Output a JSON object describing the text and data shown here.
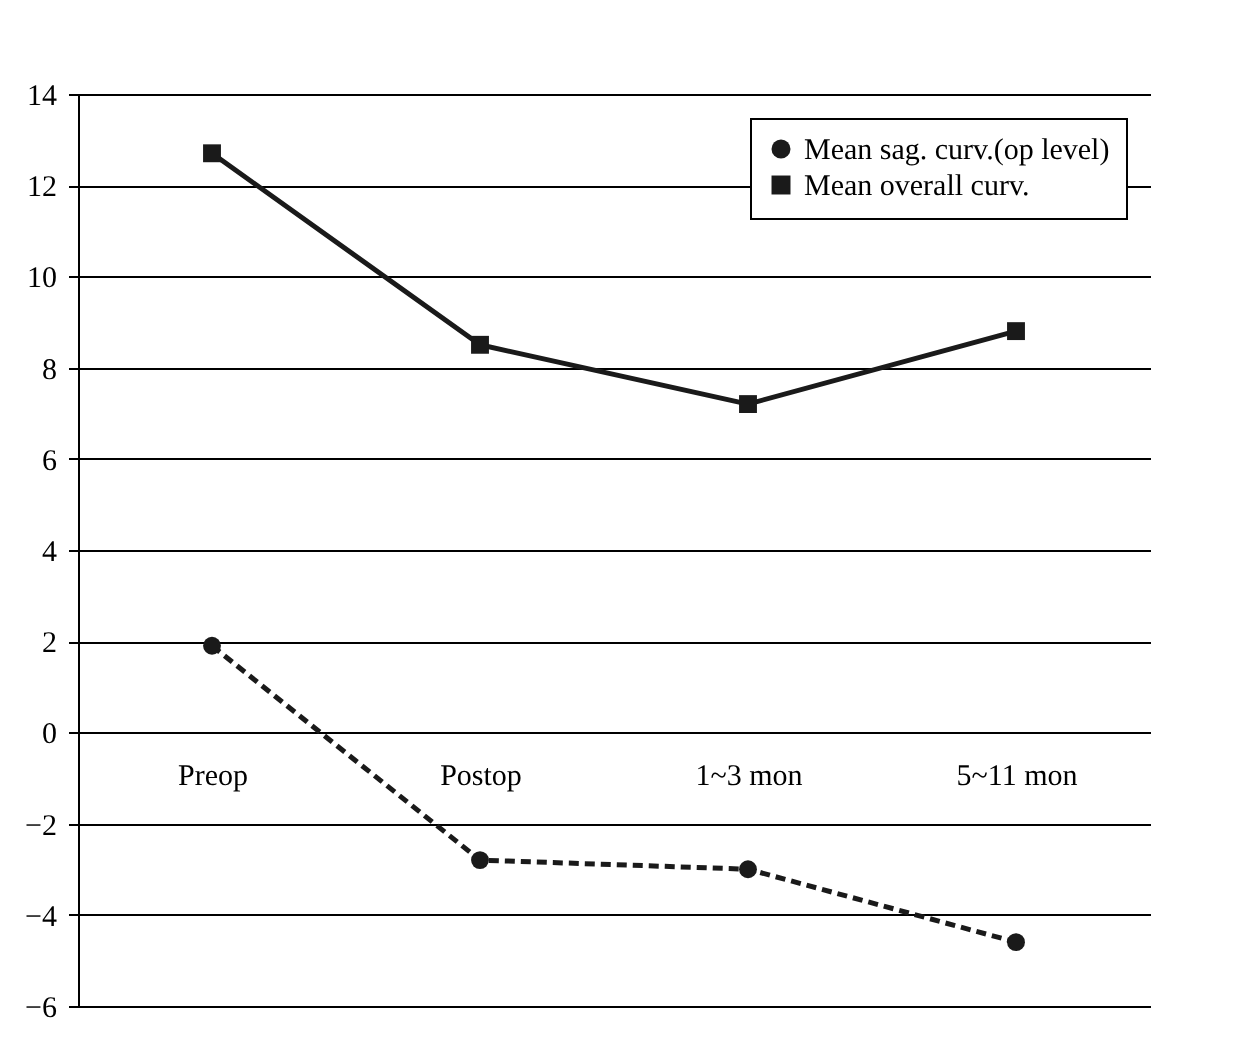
{
  "chart_data": {
    "type": "line",
    "categories": [
      "Preop",
      "Postop",
      "1~3 mon",
      "5~11 mon"
    ],
    "series": [
      {
        "name": "Mean sag. curv.(op level)",
        "color": "#1a1a1a",
        "values": [
          1.9,
          -2.8,
          -3.0,
          -4.6
        ],
        "marker": "circle",
        "line_style": "dashed"
      },
      {
        "name": "Mean overall curv.",
        "color": "#1a1a1a",
        "values": [
          12.7,
          8.5,
          7.2,
          8.8
        ],
        "marker": "square",
        "line_style": "solid"
      }
    ],
    "ylim": [
      -6,
      14
    ],
    "yticks": [
      -6,
      -4,
      -2,
      0,
      2,
      4,
      6,
      8,
      10,
      12,
      14
    ],
    "grid": "y",
    "legend": "top right"
  }
}
